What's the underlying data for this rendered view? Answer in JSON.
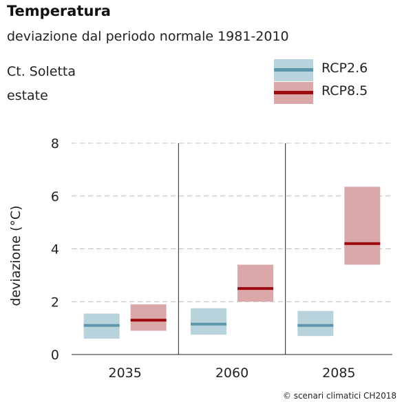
{
  "header": {
    "title": "Temperatura",
    "subtitle": "deviazione dal periodo normale 1981-2010",
    "region": "Ct. Soletta",
    "season": "estate"
  },
  "credit": "© scenari climatici CH2018",
  "colors": {
    "rcp26_fill": "#b8d3db",
    "rcp26_line": "#5e96ab",
    "rcp85_fill": "#dba8aa",
    "rcp85_line": "#9c0a0e",
    "grid": "#bbbbbb"
  },
  "chart_data": {
    "type": "bar",
    "title": "Temperatura",
    "subtitle": "deviazione dal periodo normale 1981-2010",
    "ylabel": "deviazione (°C)",
    "xlabel": "",
    "categories": [
      "2035",
      "2060",
      "2085"
    ],
    "ylim": [
      0,
      8
    ],
    "yticks": [
      0,
      2,
      4,
      6,
      8
    ],
    "grid": "horizontal dashed at ticks",
    "legend_position": "top-right",
    "series": [
      {
        "name": "RCP2.6",
        "low": [
          0.6,
          0.75,
          0.7
        ],
        "median": [
          1.1,
          1.15,
          1.1
        ],
        "high": [
          1.55,
          1.75,
          1.65
        ]
      },
      {
        "name": "RCP8.5",
        "low": [
          0.9,
          2.0,
          3.4
        ],
        "median": [
          1.3,
          2.5,
          4.2
        ],
        "high": [
          1.9,
          3.4,
          6.35
        ]
      }
    ]
  }
}
